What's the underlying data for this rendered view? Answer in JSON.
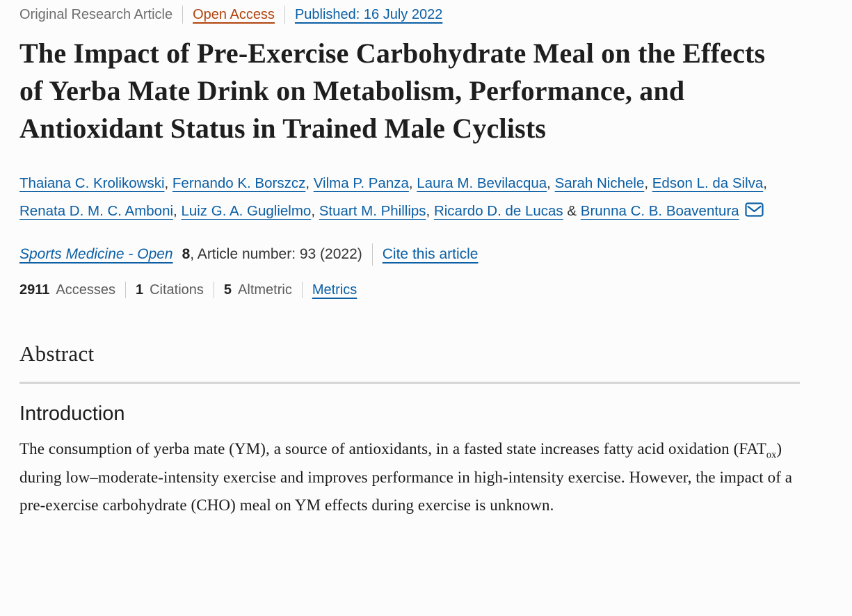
{
  "meta": {
    "article_type": "Original Research Article",
    "open_access_label": "Open Access",
    "published_label": "Published: 16 July 2022"
  },
  "title": "The Impact of Pre-Exercise Carbohydrate Meal on the Effects of Yerba Mate Drink on Metabolism, Performance, and Antioxidant Status in Trained Male Cyclists",
  "authors": [
    {
      "name": "Thaiana C. Krolikowski",
      "sep": ", "
    },
    {
      "name": "Fernando K. Borszcz",
      "sep": ", "
    },
    {
      "name": "Vilma P. Panza",
      "sep": ", "
    },
    {
      "name": "Laura M. Bevilacqua",
      "sep": ", "
    },
    {
      "name": "Sarah Nichele",
      "sep": ", "
    },
    {
      "name": "Edson L. da Silva",
      "sep": ", "
    },
    {
      "name": "Renata D. M. C. Amboni",
      "sep": ", "
    },
    {
      "name": "Luiz G. A. Guglielmo",
      "sep": ", "
    },
    {
      "name": "Stuart M. Phillips",
      "sep": ", "
    },
    {
      "name": "Ricardo D. de Lucas",
      "sep": " & "
    },
    {
      "name": "Brunna C. B. Boaventura",
      "sep": ""
    }
  ],
  "journal": {
    "name": "Sports Medicine - Open",
    "volume": "8",
    "article_info": ", Article number: 93 (2022)",
    "cite_label": "Cite this article"
  },
  "metrics": {
    "accesses_count": "2911",
    "accesses_label": "Accesses",
    "citations_count": "1",
    "citations_label": "Citations",
    "altmetric_count": "5",
    "altmetric_label": "Altmetric",
    "metrics_label": "Metrics"
  },
  "sections": {
    "abstract_heading": "Abstract",
    "introduction_heading": "Introduction",
    "intro_before_sub": "The consumption of yerba mate (YM), a source of antioxidants, in a fasted state increases fatty acid oxidation (FAT",
    "intro_sub": "ox",
    "intro_after_sub": ") during low–moderate-intensity exercise and improves performance in high-intensity exercise. However, the impact of a pre-exercise carbohydrate (CHO) meal on YM effects during exercise is unknown."
  },
  "colors": {
    "link_blue": "#0b5fa5",
    "open_access_orange": "#b2430e",
    "muted_gray": "#6e6e6e",
    "divider_gray": "#d5d5d5",
    "text_dark": "#1e1e1e"
  }
}
